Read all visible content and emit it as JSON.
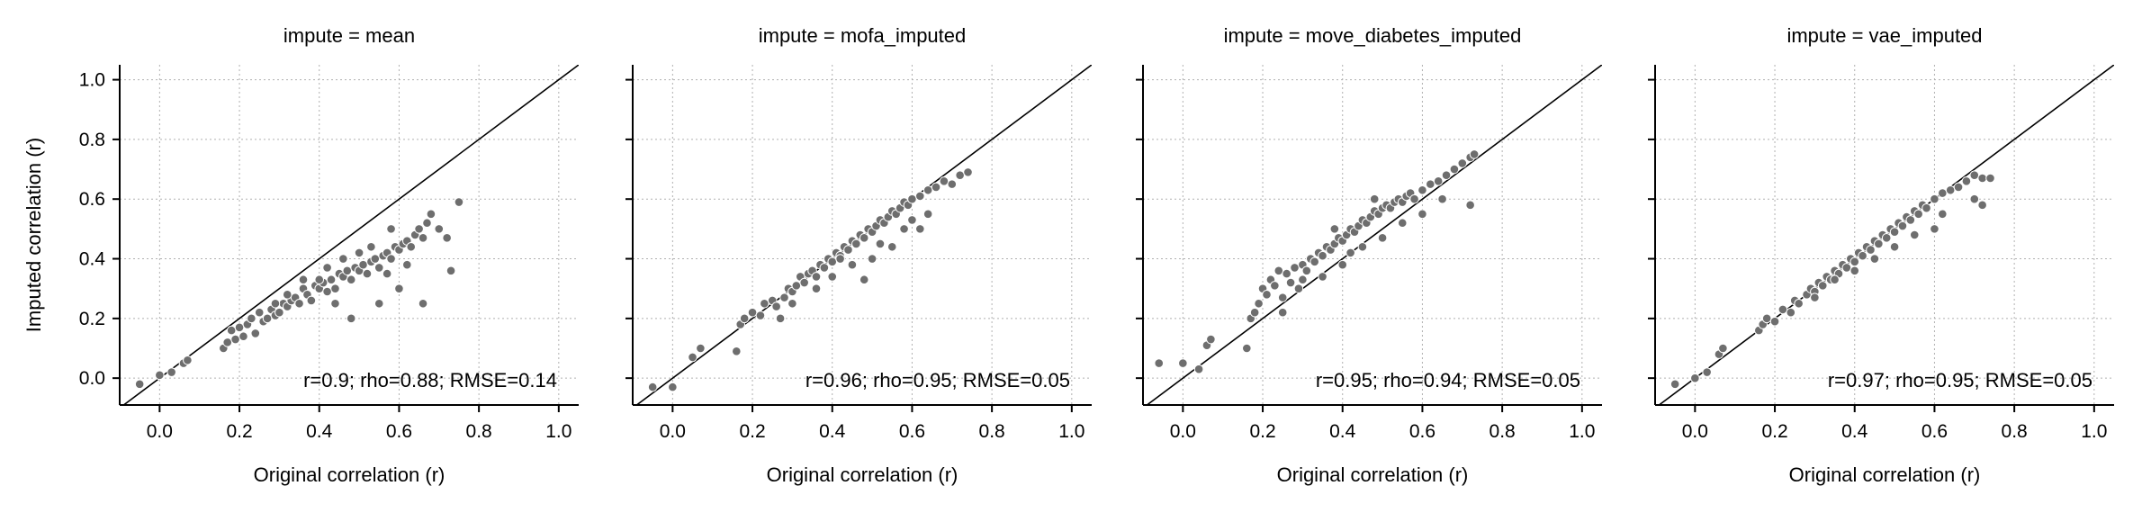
{
  "chart_data": [
    {
      "type": "scatter",
      "title": "impute = mean",
      "xlabel": "Original correlation (r)",
      "ylabel": "Imputed correlation (r)",
      "xlim": [
        -0.1,
        1.05
      ],
      "ylim": [
        -0.09,
        1.05
      ],
      "xticks": [
        "0.0",
        "0.2",
        "0.4",
        "0.6",
        "0.8",
        "1.0"
      ],
      "yticks": [
        "0.0",
        "0.2",
        "0.4",
        "0.6",
        "0.8",
        "1.0"
      ],
      "grid": true,
      "identity_line": true,
      "point_color": "#6e6e6e",
      "annotation": "r=0.9; rho=0.88; RMSE=0.14",
      "points": [
        [
          -0.05,
          -0.02
        ],
        [
          0.0,
          0.01
        ],
        [
          0.03,
          0.02
        ],
        [
          0.06,
          0.05
        ],
        [
          0.07,
          0.06
        ],
        [
          0.16,
          0.1
        ],
        [
          0.17,
          0.12
        ],
        [
          0.18,
          0.16
        ],
        [
          0.19,
          0.13
        ],
        [
          0.2,
          0.17
        ],
        [
          0.21,
          0.14
        ],
        [
          0.22,
          0.18
        ],
        [
          0.23,
          0.2
        ],
        [
          0.24,
          0.15
        ],
        [
          0.25,
          0.22
        ],
        [
          0.26,
          0.19
        ],
        [
          0.27,
          0.2
        ],
        [
          0.28,
          0.23
        ],
        [
          0.29,
          0.21
        ],
        [
          0.3,
          0.22
        ],
        [
          0.31,
          0.25
        ],
        [
          0.32,
          0.24
        ],
        [
          0.33,
          0.26
        ],
        [
          0.34,
          0.27
        ],
        [
          0.35,
          0.25
        ],
        [
          0.36,
          0.3
        ],
        [
          0.37,
          0.28
        ],
        [
          0.38,
          0.26
        ],
        [
          0.39,
          0.31
        ],
        [
          0.4,
          0.3
        ],
        [
          0.41,
          0.32
        ],
        [
          0.42,
          0.29
        ],
        [
          0.43,
          0.33
        ],
        [
          0.44,
          0.3
        ],
        [
          0.45,
          0.35
        ],
        [
          0.46,
          0.34
        ],
        [
          0.47,
          0.36
        ],
        [
          0.48,
          0.33
        ],
        [
          0.49,
          0.37
        ],
        [
          0.5,
          0.36
        ],
        [
          0.51,
          0.38
        ],
        [
          0.52,
          0.35
        ],
        [
          0.53,
          0.39
        ],
        [
          0.54,
          0.4
        ],
        [
          0.55,
          0.37
        ],
        [
          0.56,
          0.41
        ],
        [
          0.57,
          0.42
        ],
        [
          0.58,
          0.4
        ],
        [
          0.59,
          0.44
        ],
        [
          0.6,
          0.43
        ],
        [
          0.61,
          0.45
        ],
        [
          0.62,
          0.46
        ],
        [
          0.63,
          0.44
        ],
        [
          0.64,
          0.48
        ],
        [
          0.65,
          0.5
        ],
        [
          0.66,
          0.47
        ],
        [
          0.67,
          0.52
        ],
        [
          0.68,
          0.55
        ],
        [
          0.7,
          0.5
        ],
        [
          0.72,
          0.47
        ],
        [
          0.73,
          0.36
        ],
        [
          0.75,
          0.59
        ],
        [
          0.66,
          0.25
        ],
        [
          0.55,
          0.25
        ],
        [
          0.48,
          0.2
        ],
        [
          0.44,
          0.25
        ],
        [
          0.4,
          0.33
        ],
        [
          0.36,
          0.33
        ],
        [
          0.32,
          0.28
        ],
        [
          0.29,
          0.25
        ],
        [
          0.46,
          0.4
        ],
        [
          0.5,
          0.42
        ],
        [
          0.57,
          0.35
        ],
        [
          0.62,
          0.38
        ],
        [
          0.58,
          0.5
        ],
        [
          0.6,
          0.3
        ],
        [
          0.42,
          0.37
        ],
        [
          0.53,
          0.44
        ]
      ]
    },
    {
      "type": "scatter",
      "title": "impute = mofa_imputed",
      "xlabel": "Original correlation (r)",
      "ylabel": "",
      "xlim": [
        -0.1,
        1.05
      ],
      "ylim": [
        -0.09,
        1.05
      ],
      "xticks": [
        "0.0",
        "0.2",
        "0.4",
        "0.6",
        "0.8",
        "1.0"
      ],
      "yticks": [],
      "grid": true,
      "identity_line": true,
      "point_color": "#6e6e6e",
      "annotation": "r=0.96; rho=0.95; RMSE=0.05",
      "points": [
        [
          -0.05,
          -0.03
        ],
        [
          0.0,
          -0.03
        ],
        [
          0.05,
          0.07
        ],
        [
          0.07,
          0.1
        ],
        [
          0.16,
          0.09
        ],
        [
          0.17,
          0.18
        ],
        [
          0.18,
          0.2
        ],
        [
          0.2,
          0.22
        ],
        [
          0.22,
          0.21
        ],
        [
          0.23,
          0.25
        ],
        [
          0.25,
          0.26
        ],
        [
          0.26,
          0.24
        ],
        [
          0.28,
          0.27
        ],
        [
          0.29,
          0.3
        ],
        [
          0.3,
          0.29
        ],
        [
          0.31,
          0.31
        ],
        [
          0.32,
          0.34
        ],
        [
          0.33,
          0.32
        ],
        [
          0.34,
          0.35
        ],
        [
          0.35,
          0.36
        ],
        [
          0.36,
          0.34
        ],
        [
          0.37,
          0.38
        ],
        [
          0.38,
          0.37
        ],
        [
          0.39,
          0.4
        ],
        [
          0.4,
          0.39
        ],
        [
          0.41,
          0.42
        ],
        [
          0.42,
          0.41
        ],
        [
          0.43,
          0.44
        ],
        [
          0.44,
          0.43
        ],
        [
          0.45,
          0.46
        ],
        [
          0.46,
          0.45
        ],
        [
          0.47,
          0.48
        ],
        [
          0.48,
          0.47
        ],
        [
          0.49,
          0.5
        ],
        [
          0.5,
          0.49
        ],
        [
          0.51,
          0.51
        ],
        [
          0.52,
          0.53
        ],
        [
          0.53,
          0.52
        ],
        [
          0.54,
          0.54
        ],
        [
          0.55,
          0.56
        ],
        [
          0.56,
          0.55
        ],
        [
          0.57,
          0.57
        ],
        [
          0.58,
          0.59
        ],
        [
          0.59,
          0.58
        ],
        [
          0.6,
          0.6
        ],
        [
          0.62,
          0.61
        ],
        [
          0.64,
          0.63
        ],
        [
          0.66,
          0.64
        ],
        [
          0.68,
          0.66
        ],
        [
          0.7,
          0.65
        ],
        [
          0.72,
          0.68
        ],
        [
          0.74,
          0.69
        ],
        [
          0.45,
          0.38
        ],
        [
          0.5,
          0.4
        ],
        [
          0.55,
          0.44
        ],
        [
          0.48,
          0.33
        ],
        [
          0.52,
          0.45
        ],
        [
          0.4,
          0.34
        ],
        [
          0.36,
          0.3
        ],
        [
          0.58,
          0.5
        ],
        [
          0.6,
          0.53
        ],
        [
          0.62,
          0.5
        ],
        [
          0.64,
          0.55
        ],
        [
          0.42,
          0.4
        ],
        [
          0.3,
          0.25
        ],
        [
          0.27,
          0.2
        ]
      ]
    },
    {
      "type": "scatter",
      "title": "impute = move_diabetes_imputed",
      "xlabel": "Original correlation (r)",
      "ylabel": "",
      "xlim": [
        -0.1,
        1.05
      ],
      "ylim": [
        -0.09,
        1.05
      ],
      "xticks": [
        "0.0",
        "0.2",
        "0.4",
        "0.6",
        "0.8",
        "1.0"
      ],
      "yticks": [],
      "grid": true,
      "identity_line": true,
      "point_color": "#6e6e6e",
      "annotation": "r=0.95; rho=0.94; RMSE=0.05",
      "points": [
        [
          -0.06,
          0.05
        ],
        [
          0.0,
          0.05
        ],
        [
          0.04,
          0.03
        ],
        [
          0.06,
          0.11
        ],
        [
          0.07,
          0.13
        ],
        [
          0.16,
          0.1
        ],
        [
          0.17,
          0.2
        ],
        [
          0.18,
          0.22
        ],
        [
          0.19,
          0.25
        ],
        [
          0.2,
          0.3
        ],
        [
          0.21,
          0.28
        ],
        [
          0.22,
          0.33
        ],
        [
          0.23,
          0.31
        ],
        [
          0.24,
          0.36
        ],
        [
          0.25,
          0.27
        ],
        [
          0.26,
          0.35
        ],
        [
          0.27,
          0.32
        ],
        [
          0.28,
          0.37
        ],
        [
          0.29,
          0.3
        ],
        [
          0.3,
          0.38
        ],
        [
          0.31,
          0.36
        ],
        [
          0.32,
          0.4
        ],
        [
          0.33,
          0.39
        ],
        [
          0.34,
          0.42
        ],
        [
          0.35,
          0.41
        ],
        [
          0.36,
          0.44
        ],
        [
          0.37,
          0.43
        ],
        [
          0.38,
          0.45
        ],
        [
          0.39,
          0.47
        ],
        [
          0.4,
          0.46
        ],
        [
          0.41,
          0.48
        ],
        [
          0.42,
          0.5
        ],
        [
          0.43,
          0.49
        ],
        [
          0.44,
          0.51
        ],
        [
          0.45,
          0.53
        ],
        [
          0.46,
          0.52
        ],
        [
          0.47,
          0.54
        ],
        [
          0.48,
          0.56
        ],
        [
          0.49,
          0.55
        ],
        [
          0.5,
          0.57
        ],
        [
          0.51,
          0.58
        ],
        [
          0.52,
          0.57
        ],
        [
          0.53,
          0.59
        ],
        [
          0.54,
          0.6
        ],
        [
          0.55,
          0.59
        ],
        [
          0.56,
          0.61
        ],
        [
          0.57,
          0.62
        ],
        [
          0.58,
          0.6
        ],
        [
          0.6,
          0.63
        ],
        [
          0.62,
          0.65
        ],
        [
          0.64,
          0.66
        ],
        [
          0.66,
          0.68
        ],
        [
          0.68,
          0.7
        ],
        [
          0.7,
          0.72
        ],
        [
          0.72,
          0.74
        ],
        [
          0.73,
          0.75
        ],
        [
          0.72,
          0.58
        ],
        [
          0.42,
          0.42
        ],
        [
          0.4,
          0.38
        ],
        [
          0.45,
          0.44
        ],
        [
          0.5,
          0.47
        ],
        [
          0.55,
          0.52
        ],
        [
          0.35,
          0.34
        ],
        [
          0.3,
          0.33
        ],
        [
          0.25,
          0.22
        ],
        [
          0.38,
          0.5
        ],
        [
          0.48,
          0.6
        ],
        [
          0.6,
          0.55
        ],
        [
          0.65,
          0.6
        ]
      ]
    },
    {
      "type": "scatter",
      "title": "impute = vae_imputed",
      "xlabel": "Original correlation (r)",
      "ylabel": "",
      "xlim": [
        -0.1,
        1.05
      ],
      "ylim": [
        -0.09,
        1.05
      ],
      "xticks": [
        "0.0",
        "0.2",
        "0.4",
        "0.6",
        "0.8",
        "1.0"
      ],
      "yticks": [],
      "grid": true,
      "identity_line": true,
      "point_color": "#6e6e6e",
      "annotation": "r=0.97; rho=0.95; RMSE=0.05",
      "points": [
        [
          -0.05,
          -0.02
        ],
        [
          0.0,
          0.0
        ],
        [
          0.03,
          0.02
        ],
        [
          0.06,
          0.08
        ],
        [
          0.07,
          0.1
        ],
        [
          0.16,
          0.16
        ],
        [
          0.17,
          0.18
        ],
        [
          0.18,
          0.2
        ],
        [
          0.2,
          0.19
        ],
        [
          0.22,
          0.23
        ],
        [
          0.24,
          0.22
        ],
        [
          0.25,
          0.26
        ],
        [
          0.26,
          0.25
        ],
        [
          0.28,
          0.28
        ],
        [
          0.29,
          0.3
        ],
        [
          0.3,
          0.29
        ],
        [
          0.31,
          0.32
        ],
        [
          0.32,
          0.31
        ],
        [
          0.33,
          0.34
        ],
        [
          0.34,
          0.33
        ],
        [
          0.35,
          0.36
        ],
        [
          0.36,
          0.35
        ],
        [
          0.37,
          0.38
        ],
        [
          0.38,
          0.37
        ],
        [
          0.39,
          0.4
        ],
        [
          0.4,
          0.39
        ],
        [
          0.41,
          0.42
        ],
        [
          0.42,
          0.41
        ],
        [
          0.43,
          0.44
        ],
        [
          0.44,
          0.43
        ],
        [
          0.45,
          0.46
        ],
        [
          0.46,
          0.45
        ],
        [
          0.47,
          0.48
        ],
        [
          0.48,
          0.47
        ],
        [
          0.49,
          0.5
        ],
        [
          0.5,
          0.49
        ],
        [
          0.51,
          0.52
        ],
        [
          0.52,
          0.51
        ],
        [
          0.53,
          0.54
        ],
        [
          0.54,
          0.53
        ],
        [
          0.55,
          0.56
        ],
        [
          0.56,
          0.55
        ],
        [
          0.57,
          0.58
        ],
        [
          0.58,
          0.57
        ],
        [
          0.6,
          0.6
        ],
        [
          0.62,
          0.62
        ],
        [
          0.64,
          0.63
        ],
        [
          0.66,
          0.64
        ],
        [
          0.68,
          0.66
        ],
        [
          0.7,
          0.68
        ],
        [
          0.72,
          0.67
        ],
        [
          0.74,
          0.67
        ],
        [
          0.7,
          0.6
        ],
        [
          0.72,
          0.58
        ],
        [
          0.6,
          0.5
        ],
        [
          0.55,
          0.48
        ],
        [
          0.45,
          0.4
        ],
        [
          0.4,
          0.36
        ],
        [
          0.5,
          0.44
        ],
        [
          0.62,
          0.55
        ],
        [
          0.35,
          0.33
        ],
        [
          0.3,
          0.27
        ]
      ]
    }
  ]
}
